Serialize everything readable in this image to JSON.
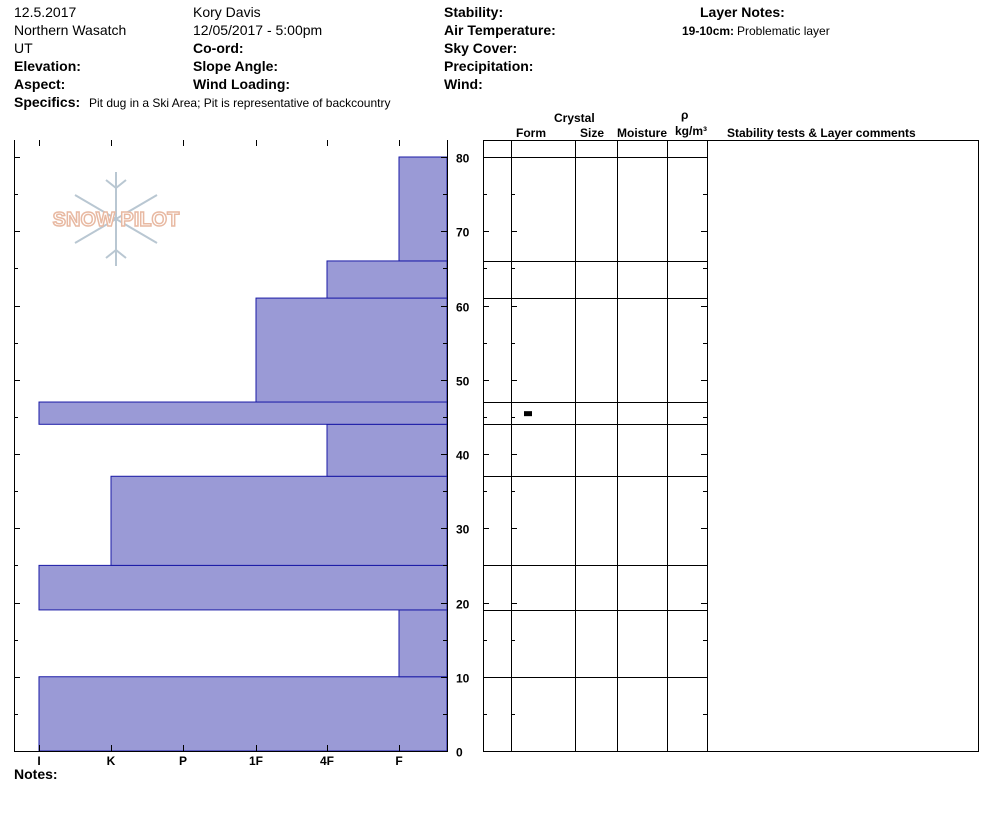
{
  "header": {
    "date": "12.5.2017",
    "region": "Northern Wasatch",
    "state": "UT",
    "elevation_label": "Elevation:",
    "aspect_label": "Aspect:",
    "specifics_label": "Specifics:",
    "specifics_value": "Pit dug in a Ski Area; Pit is representative of backcountry",
    "observer": "Kory Davis",
    "datetime": "12/05/2017 - 5:00pm",
    "coord_label": "Co-ord:",
    "slope_label": "Slope Angle:",
    "wind_loading_label": "Wind Loading:",
    "stability_label": "Stability:",
    "air_temp_label": "Air Temperature:",
    "sky_label": "Sky Cover:",
    "precip_label": "Precipitation:",
    "wind_label": "Wind:",
    "layer_notes_label": "Layer Notes:",
    "layer_note_range": "19-10cm:",
    "layer_note_text": "Problematic layer",
    "notes_label": "Notes:"
  },
  "logo": {
    "text": "SNOW PILOT"
  },
  "table_headers": {
    "crystal": "Crystal",
    "form": "Form",
    "size": "Size",
    "moisture": "Moisture",
    "rho": "ρ",
    "density_unit": "kg/m³",
    "comments": "Stability tests & Layer comments"
  },
  "colors": {
    "layer_fill": "#9a9ad6",
    "layer_stroke": "#1a1aa6",
    "logo": "#e8b9a2"
  },
  "chart_data": {
    "type": "bar",
    "orientation": "horizontal",
    "y_axis": {
      "range": [
        0,
        80
      ],
      "ticks": [
        "0",
        "10",
        "20",
        "30",
        "40",
        "50",
        "60",
        "70",
        "80"
      ]
    },
    "x_axis": {
      "categories": [
        "I",
        "K",
        "P",
        "1F",
        "4F",
        "F"
      ],
      "hardness_index": [
        6,
        5,
        4,
        3,
        2,
        1
      ]
    },
    "layers": [
      {
        "bottom": 0,
        "top": 10,
        "hardness": "I"
      },
      {
        "bottom": 10,
        "top": 19,
        "hardness": "F"
      },
      {
        "bottom": 19,
        "top": 25,
        "hardness": "I"
      },
      {
        "bottom": 25,
        "top": 37,
        "hardness": "K"
      },
      {
        "bottom": 37,
        "top": 44,
        "hardness": "4F"
      },
      {
        "bottom": 44,
        "top": 47,
        "hardness": "I"
      },
      {
        "bottom": 47,
        "top": 61,
        "hardness": "1F"
      },
      {
        "bottom": 61,
        "top": 66,
        "hardness": "4F"
      },
      {
        "bottom": 66,
        "top": 80,
        "hardness": "F"
      }
    ],
    "marker_height": 45.5
  }
}
